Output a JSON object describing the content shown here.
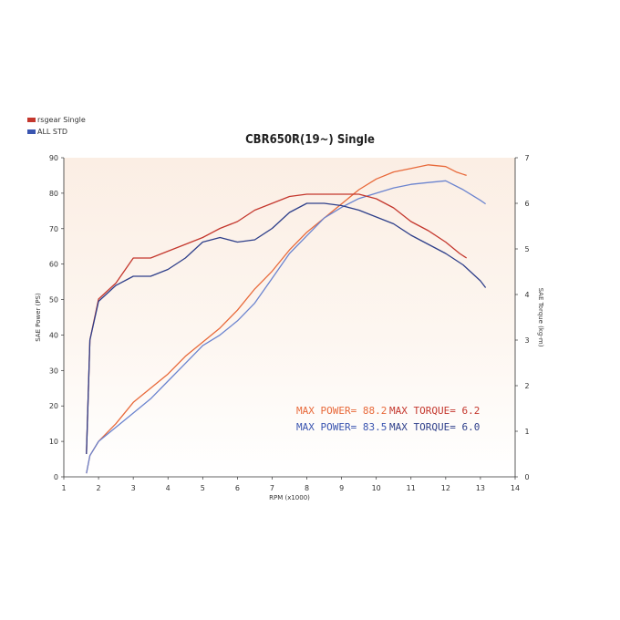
{
  "legend": {
    "items": [
      {
        "label": "rsgear Single",
        "color": "#c4372d"
      },
      {
        "label": "ALL STD",
        "color": "#3a55b0"
      }
    ]
  },
  "chart_data": {
    "type": "line",
    "title": "CBR650R(19~) Single",
    "xlabel": "RPM (x1000)",
    "ylabel": "SAE Power (PS)",
    "y2label": "SAE Torque (kg-m)",
    "xlim": [
      1,
      14
    ],
    "ylim": [
      0,
      90
    ],
    "y2lim": [
      0,
      7
    ],
    "x_ticks": [
      "1",
      "2",
      "3",
      "4",
      "5",
      "6",
      "7",
      "8",
      "9",
      "10",
      "11",
      "12",
      "13",
      "14"
    ],
    "y_ticks": [
      "0",
      "10",
      "20",
      "30",
      "40",
      "50",
      "60",
      "70",
      "80",
      "90"
    ],
    "y2_ticks": [
      "0",
      "1",
      "2",
      "3",
      "4",
      "5",
      "6",
      "7"
    ],
    "grid": "background gradient",
    "series": [
      {
        "name": "rsgear Single",
        "quantity": "power",
        "axis": "left",
        "color": "#e8693a",
        "x": [
          1.65,
          1.75,
          2.0,
          2.5,
          3.0,
          3.5,
          4.0,
          4.5,
          5.0,
          5.5,
          6.0,
          6.5,
          7.0,
          7.5,
          8.0,
          8.5,
          9.0,
          9.5,
          10.0,
          10.5,
          11.0,
          11.5,
          12.0,
          12.3,
          12.6
        ],
        "y": [
          1,
          6,
          10,
          15,
          21,
          25,
          29,
          34,
          38,
          42,
          47,
          53,
          58,
          64,
          69,
          73,
          77,
          81,
          84,
          86,
          87,
          88,
          87.5,
          86,
          85
        ]
      },
      {
        "name": "ALL STD",
        "quantity": "power",
        "axis": "left",
        "color": "#6b84cf",
        "x": [
          1.65,
          1.75,
          2.0,
          2.5,
          3.0,
          3.5,
          4.0,
          4.5,
          5.0,
          5.5,
          6.0,
          6.5,
          7.0,
          7.5,
          8.0,
          8.5,
          9.0,
          9.5,
          10.0,
          10.5,
          11.0,
          11.5,
          12.0,
          12.5,
          13.0,
          13.15
        ],
        "y": [
          1,
          6,
          10,
          14,
          18,
          22,
          27,
          32,
          37,
          40,
          44,
          49,
          56,
          63,
          68,
          73,
          76,
          78.5,
          80,
          81.5,
          82.5,
          83,
          83.5,
          81,
          78,
          77
        ]
      },
      {
        "name": "rsgear Single",
        "quantity": "torque",
        "axis": "right",
        "color": "#c4372d",
        "x": [
          1.65,
          1.75,
          2.0,
          2.5,
          3.0,
          3.5,
          4.0,
          4.5,
          5.0,
          5.5,
          6.0,
          6.5,
          7.0,
          7.5,
          8.0,
          8.5,
          9.0,
          9.5,
          10.0,
          10.5,
          11.0,
          11.5,
          12.0,
          12.4,
          12.6
        ],
        "y": [
          0.5,
          3.0,
          3.9,
          4.25,
          4.8,
          4.8,
          4.95,
          5.1,
          5.25,
          5.45,
          5.6,
          5.85,
          6.0,
          6.15,
          6.2,
          6.2,
          6.2,
          6.2,
          6.1,
          5.9,
          5.6,
          5.4,
          5.15,
          4.9,
          4.8
        ]
      },
      {
        "name": "ALL STD",
        "quantity": "torque",
        "axis": "right",
        "color": "#2e3f8a",
        "x": [
          1.65,
          1.75,
          2.0,
          2.5,
          3.0,
          3.5,
          4.0,
          4.5,
          5.0,
          5.5,
          6.0,
          6.5,
          7.0,
          7.5,
          8.0,
          8.5,
          9.0,
          9.5,
          10.0,
          10.5,
          11.0,
          11.5,
          12.0,
          12.5,
          13.0,
          13.15
        ],
        "y": [
          0.5,
          3.0,
          3.85,
          4.2,
          4.4,
          4.4,
          4.55,
          4.8,
          5.15,
          5.25,
          5.15,
          5.2,
          5.45,
          5.8,
          6.0,
          6.0,
          5.95,
          5.85,
          5.7,
          5.55,
          5.3,
          5.1,
          4.9,
          4.65,
          4.3,
          4.15
        ]
      }
    ],
    "annotations": [
      {
        "text": "MAX POWER= 88.2",
        "color": "#e8693a"
      },
      {
        "text": "MAX TORQUE= 6.2",
        "color": "#c4372d"
      },
      {
        "text": "MAX POWER= 83.5",
        "color": "#3a55b0"
      },
      {
        "text": "MAX TORQUE= 6.0",
        "color": "#2e3f8a"
      }
    ]
  }
}
